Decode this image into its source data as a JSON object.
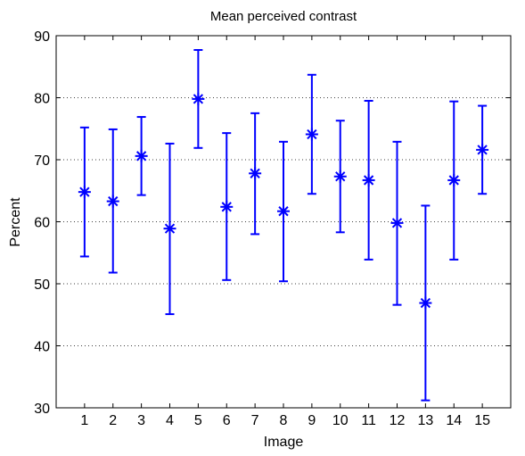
{
  "chart_data": {
    "type": "errorbar",
    "title": "Mean perceived contrast",
    "xlabel": "Image",
    "ylabel": "Percent",
    "ylim": [
      30,
      90
    ],
    "yticks": [
      30,
      40,
      50,
      60,
      70,
      80,
      90
    ],
    "xlim": [
      0,
      16
    ],
    "categories": [
      "1",
      "2",
      "3",
      "4",
      "5",
      "6",
      "7",
      "8",
      "9",
      "10",
      "11",
      "12",
      "13",
      "14",
      "15"
    ],
    "means": [
      64.8,
      63.3,
      70.6,
      58.9,
      79.8,
      62.4,
      67.8,
      61.7,
      74.1,
      67.3,
      66.7,
      59.8,
      46.9,
      66.7,
      71.6
    ],
    "lower": [
      54.4,
      51.8,
      64.3,
      45.1,
      71.9,
      50.6,
      58.0,
      50.4,
      64.5,
      58.3,
      53.9,
      46.6,
      31.2,
      53.9,
      64.5
    ],
    "upper": [
      75.2,
      74.9,
      76.9,
      72.6,
      87.7,
      74.3,
      77.5,
      72.9,
      83.7,
      76.3,
      79.5,
      72.9,
      62.6,
      79.4,
      78.7
    ],
    "grid": true,
    "marker": "asterisk",
    "color": "#0000ff"
  }
}
